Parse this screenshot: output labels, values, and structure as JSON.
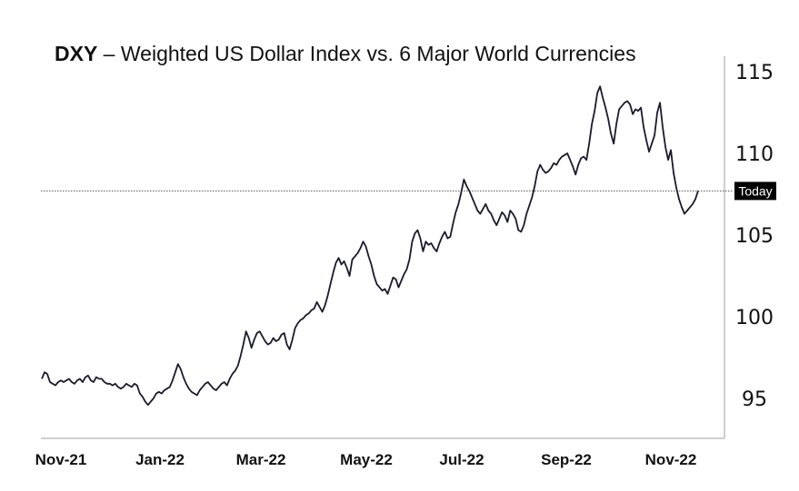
{
  "title": {
    "bold": "DXY",
    "rest": " – Weighted US Dollar Index vs. 6 Major World Currencies"
  },
  "colors": {
    "line": "#1a1a2e",
    "axis": "#bfbfbf",
    "reference": "#555555",
    "label_bg": "#000000"
  },
  "chart_data": {
    "type": "line",
    "title": "DXY – Weighted US Dollar Index vs. 6 Major World Currencies",
    "xlabel": "",
    "ylabel": "",
    "x_ticks": [
      "Nov-21",
      "Jan-22",
      "Mar-22",
      "May-22",
      "Jul-22",
      "Sep-22",
      "Nov-22"
    ],
    "y_ticks": [
      95,
      100,
      105,
      110,
      115
    ],
    "ylim": [
      92.5,
      115.5
    ],
    "grid": false,
    "reference_line": {
      "value": 107.7,
      "label": "Today"
    },
    "series": [
      {
        "values": [
          96.2,
          96.6,
          96.5,
          96.0,
          95.9,
          95.8,
          96.0,
          96.1,
          96.0,
          96.1,
          96.2,
          96.0,
          95.9,
          96.1,
          96.2,
          96.0,
          96.3,
          96.4,
          96.1,
          96.0,
          96.3,
          96.2,
          96.2,
          96.0,
          95.9,
          95.9,
          95.8,
          95.9,
          95.7,
          95.6,
          95.7,
          95.9,
          95.8,
          95.7,
          95.9,
          95.8,
          95.3,
          95.1,
          94.8,
          94.6,
          94.8,
          95.0,
          95.3,
          95.4,
          95.3,
          95.5,
          95.6,
          95.7,
          96.1,
          96.6,
          97.1,
          96.8,
          96.3,
          95.9,
          95.6,
          95.4,
          95.3,
          95.2,
          95.5,
          95.7,
          95.9,
          96.0,
          95.8,
          95.6,
          95.5,
          95.7,
          95.9,
          96.0,
          95.8,
          96.2,
          96.5,
          96.7,
          97.0,
          97.6,
          98.3,
          99.1,
          98.7,
          98.1,
          98.6,
          99.0,
          99.1,
          98.8,
          98.5,
          98.3,
          98.4,
          98.7,
          98.5,
          98.6,
          98.9,
          99.0,
          98.3,
          98.0,
          98.6,
          99.3,
          99.6,
          99.8,
          99.9,
          100.1,
          100.2,
          100.4,
          100.5,
          100.9,
          100.6,
          100.3,
          100.7,
          101.3,
          102.0,
          102.7,
          103.3,
          103.6,
          103.2,
          103.4,
          103.0,
          102.5,
          103.5,
          103.7,
          103.9,
          104.2,
          104.6,
          104.3,
          103.7,
          103.2,
          102.5,
          102.0,
          101.8,
          101.6,
          101.7,
          101.4,
          101.9,
          102.4,
          102.3,
          101.8,
          102.2,
          102.6,
          102.9,
          103.5,
          104.6,
          105.1,
          105.3,
          104.8,
          104.0,
          104.6,
          104.4,
          104.5,
          104.2,
          104.0,
          104.5,
          104.9,
          105.2,
          104.8,
          104.9,
          105.7,
          106.4,
          106.9,
          107.6,
          108.4,
          108.0,
          107.7,
          107.3,
          106.9,
          106.5,
          106.3,
          106.6,
          106.9,
          106.5,
          106.3,
          105.9,
          105.6,
          106.0,
          106.4,
          106.2,
          105.8,
          106.5,
          106.3,
          106.0,
          105.3,
          105.2,
          105.6,
          106.3,
          106.8,
          107.3,
          108.0,
          108.9,
          109.3,
          109.0,
          108.8,
          108.9,
          109.1,
          109.4,
          109.3,
          109.6,
          109.8,
          109.9,
          110.0,
          109.6,
          109.2,
          108.7,
          109.3,
          109.7,
          109.8,
          109.6,
          110.6,
          111.8,
          112.6,
          113.7,
          114.1,
          113.4,
          112.8,
          112.1,
          111.2,
          110.6,
          111.8,
          112.7,
          112.9,
          113.1,
          113.2,
          113.0,
          112.4,
          112.7,
          112.6,
          112.8,
          111.6,
          110.8,
          110.1,
          110.6,
          111.1,
          112.5,
          113.1,
          111.6,
          110.4,
          109.6,
          110.2,
          108.8,
          107.9,
          107.2,
          106.7,
          106.3,
          106.5,
          106.7,
          106.9,
          107.2,
          107.7
        ]
      }
    ]
  }
}
